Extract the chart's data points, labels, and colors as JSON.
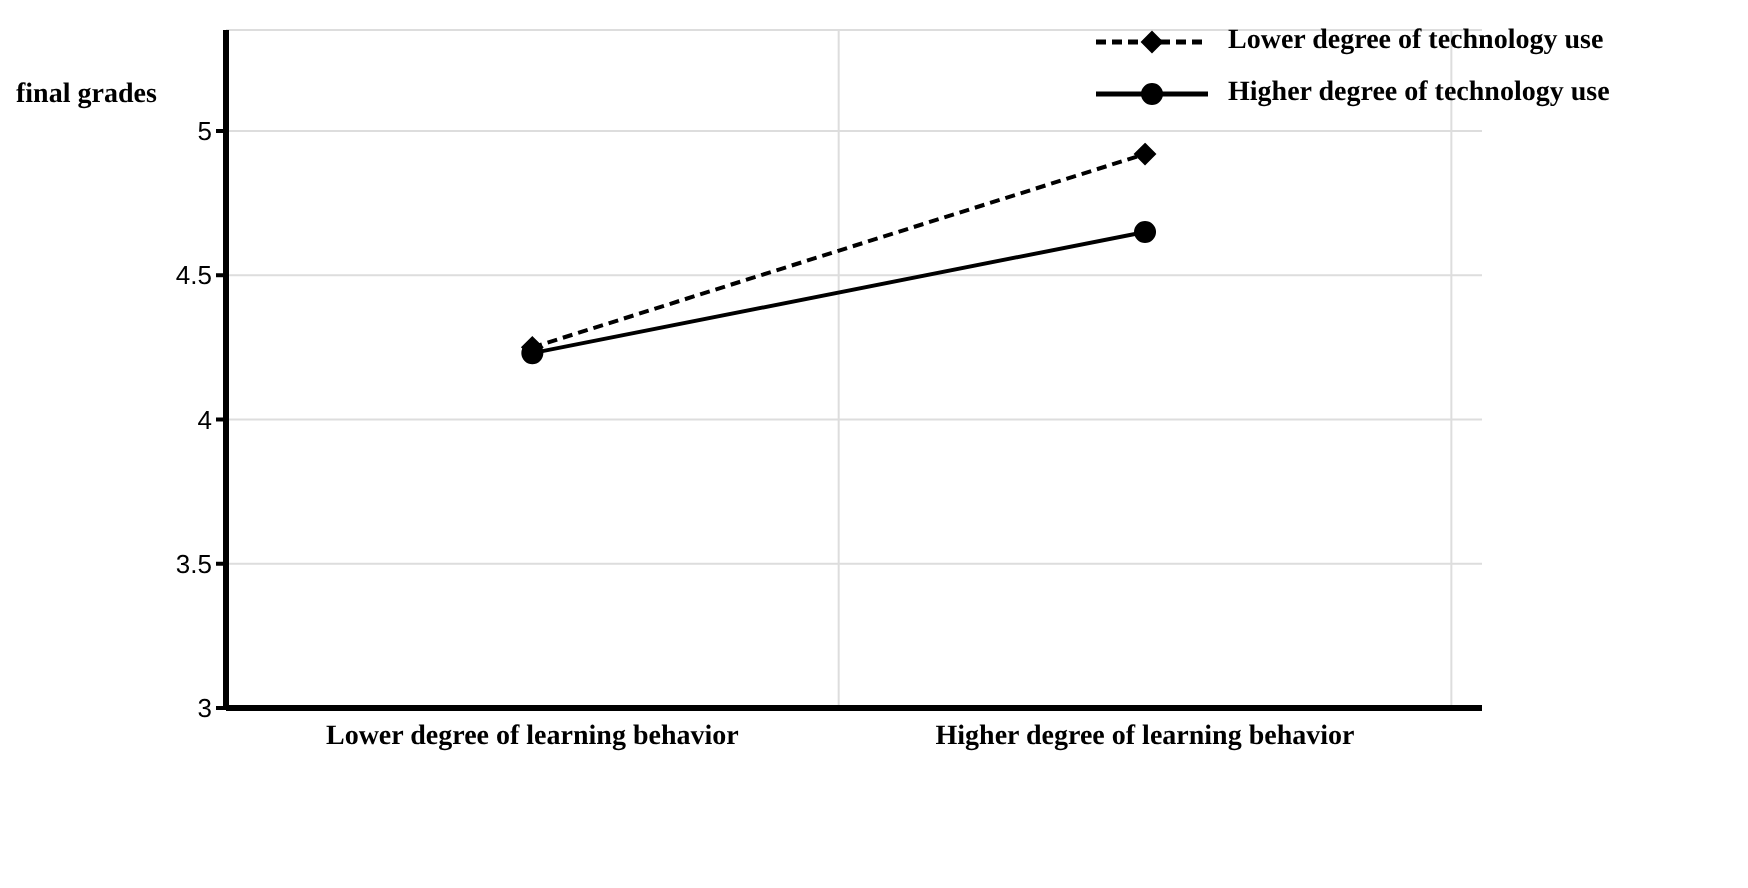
{
  "chart_data": {
    "type": "line",
    "ylabel": "final grades",
    "categories": [
      "Lower degree of learning behavior",
      "Higher degree of learning behavior"
    ],
    "series": [
      {
        "name": "Lower degree of technology use",
        "color": "#000000",
        "values": [
          4.25,
          4.92
        ],
        "line_style": "dashed",
        "marker": "diamond"
      },
      {
        "name": "Higher degree of technology use",
        "color": "#000000",
        "values": [
          4.23,
          4.65
        ],
        "line_style": "solid",
        "marker": "circle"
      }
    ],
    "ylim": [
      3,
      5.35
    ],
    "yticks": [
      3,
      3.5,
      4,
      4.5,
      5
    ],
    "grid": true,
    "legend": "top right"
  }
}
